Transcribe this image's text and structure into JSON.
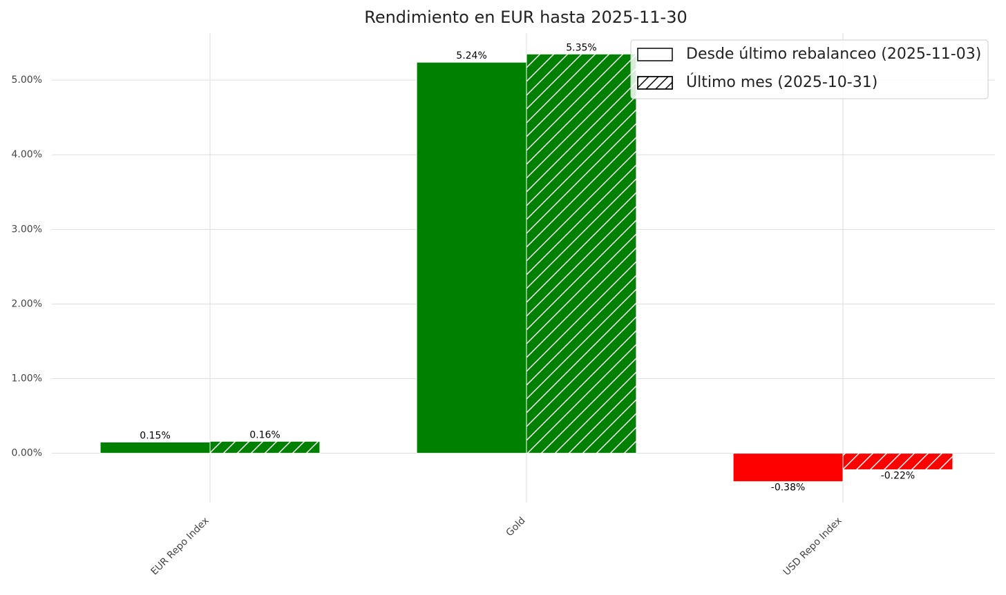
{
  "chart_data": {
    "type": "bar",
    "title": "Rendimiento en EUR hasta 2025-11-30",
    "categories": [
      "EUR Repo Index",
      "Gold",
      "USD Repo Index"
    ],
    "series": [
      {
        "name": "Desde último rebalanceo (2025-11-03)",
        "colors": [
          "#008000",
          "#008000",
          "#ff0000"
        ],
        "hatch": false,
        "values": [
          0.15,
          5.24,
          -0.38
        ],
        "value_labels": [
          "0.15%",
          "5.24%",
          "-0.38%"
        ]
      },
      {
        "name": "Último mes (2025-10-31)",
        "colors": [
          "#008000",
          "#008000",
          "#ff0000"
        ],
        "hatch": true,
        "values": [
          0.16,
          5.35,
          -0.22
        ],
        "value_labels": [
          "0.16%",
          "5.35%",
          "-0.22%"
        ]
      }
    ],
    "ylim": [
      -0.66,
      5.63
    ],
    "yticks": [
      {
        "value": 0,
        "label": "0.00%"
      },
      {
        "value": 1,
        "label": "1.00%"
      },
      {
        "value": 2,
        "label": "2.00%"
      },
      {
        "value": 3,
        "label": "3.00%"
      },
      {
        "value": 4,
        "label": "4.00%"
      },
      {
        "value": 5,
        "label": "5.00%"
      }
    ],
    "grid": true,
    "legend_position": "upper right"
  }
}
